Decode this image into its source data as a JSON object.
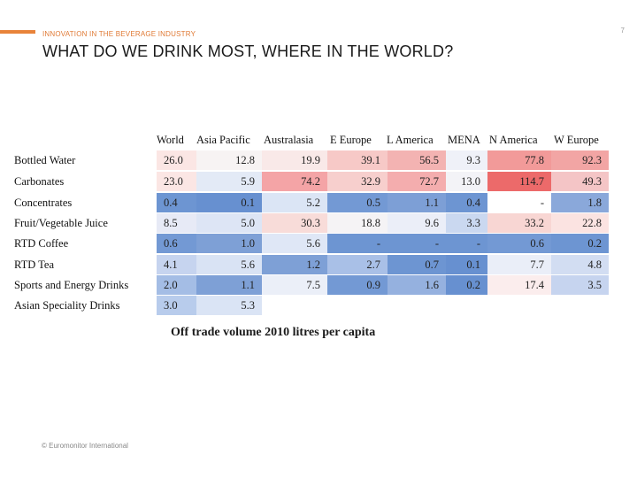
{
  "header": {
    "kicker": "INNOVATION IN THE BEVERAGE INDUSTRY",
    "page_number": "7",
    "title": "WHAT DO WE DRINK MOST, WHERE IN THE WORLD?",
    "accent_color": "#e8833a"
  },
  "footer": {
    "text": "© Euromonitor International"
  },
  "chart_data": {
    "type": "heatmap",
    "caption": "Off trade volume 2010 litres per capita",
    "columns": [
      "World",
      "Asia Pacific",
      "Australasia",
      "E Europe",
      "L America",
      "MENA",
      "N America",
      "W Europe"
    ],
    "rows": [
      {
        "label": "Bottled Water",
        "values": [
          "26.0",
          "12.8",
          "19.9",
          "39.1",
          "56.5",
          "9.3",
          "77.8",
          "92.3"
        ]
      },
      {
        "label": "Carbonates",
        "values": [
          "23.0",
          "5.9",
          "74.2",
          "32.9",
          "72.7",
          "13.0",
          "114.7",
          "49.3"
        ]
      },
      {
        "label": "Concentrates",
        "values": [
          "0.4",
          "0.1",
          "5.2",
          "0.5",
          "1.1",
          "0.4",
          "-",
          "1.8"
        ]
      },
      {
        "label": "Fruit/Vegetable Juice",
        "values": [
          "8.5",
          "5.0",
          "30.3",
          "18.8",
          "9.6",
          "3.3",
          "33.2",
          "22.8"
        ]
      },
      {
        "label": "RTD Coffee",
        "values": [
          "0.6",
          "1.0",
          "5.6",
          "-",
          "-",
          "-",
          "0.6",
          "0.2"
        ]
      },
      {
        "label": "RTD Tea",
        "values": [
          "4.1",
          "5.6",
          "1.2",
          "2.7",
          "0.7",
          "0.1",
          "7.7",
          "4.8"
        ]
      },
      {
        "label": "Sports and Energy Drinks",
        "values": [
          "2.0",
          "1.1",
          "7.5",
          "0.9",
          "1.6",
          "0.2",
          "17.4",
          "3.5"
        ]
      },
      {
        "label": "Asian Speciality Drinks",
        "values": [
          "3.0",
          "5.3",
          "",
          "",
          "",
          "",
          "",
          ""
        ]
      }
    ],
    "cell_colors": [
      [
        "#fbe6e4",
        "#f7f3f3",
        "#f9e9e8",
        "#f7c9c7",
        "#f3b3b2",
        "#eff1f8",
        "#f29a99",
        "#f2a5a4"
      ],
      [
        "#fbe6e4",
        "#e3eaf6",
        "#f4a4a6",
        "#f7cfcd",
        "#f4adae",
        "#f3f3f7",
        "#ec6a6a",
        "#f4c5c6"
      ],
      [
        "#6d95d2",
        "#6790d0",
        "#dbe5f5",
        "#7399d4",
        "#7d9fd6",
        "#6d95d2",
        "#ffffff",
        "#8aa8da"
      ],
      [
        "#e7eaf6",
        "#dde5f5",
        "#f8dcd9",
        "#f5f3f5",
        "#ebeef8",
        "#cad8f0",
        "#f8d6d3",
        "#fbe3e1"
      ],
      [
        "#7399d4",
        "#7ea0d6",
        "#dfe7f6",
        "#6d95d2",
        "#6d95d2",
        "#6d95d2",
        "#7399d4",
        "#6d95d2"
      ],
      [
        "#c6d4ef",
        "#d9e3f4",
        "#7ea0d6",
        "#a9c0e7",
        "#6d95d2",
        "#6790d0",
        "#eaeef8",
        "#d2ddf2"
      ],
      [
        "#a4bde5",
        "#7ea0d6",
        "#ebeff8",
        "#7399d4",
        "#95b1df",
        "#6790d0",
        "#fbeded",
        "#c6d4ef"
      ],
      [
        "#b8ccec",
        "#dae4f5",
        "#ffffff",
        "#ffffff",
        "#ffffff",
        "#ffffff",
        "#ffffff",
        "#ffffff"
      ]
    ]
  }
}
